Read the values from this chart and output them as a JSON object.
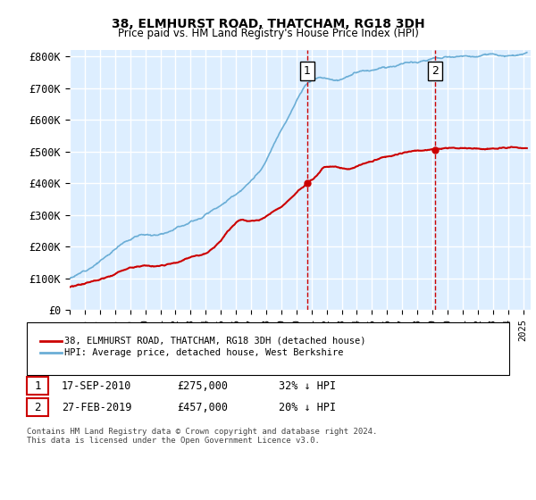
{
  "title1": "38, ELMHURST ROAD, THATCHAM, RG18 3DH",
  "title2": "Price paid vs. HM Land Registry's House Price Index (HPI)",
  "ylabel_ticks": [
    "£0",
    "£100K",
    "£200K",
    "£300K",
    "£400K",
    "£500K",
    "£600K",
    "£700K",
    "£800K"
  ],
  "ylabel_values": [
    0,
    100000,
    200000,
    300000,
    400000,
    500000,
    600000,
    700000,
    800000
  ],
  "ylim": [
    0,
    820000
  ],
  "xlim_start": 1995.0,
  "xlim_end": 2025.5,
  "hpi_color": "#6baed6",
  "price_color": "#cc0000",
  "sale1_x": 2010.72,
  "sale1_y": 275000,
  "sale2_x": 2019.17,
  "sale2_y": 457000,
  "marker1_label": "1",
  "marker2_label": "2",
  "legend_entry1": "38, ELMHURST ROAD, THATCHAM, RG18 3DH (detached house)",
  "legend_entry2": "HPI: Average price, detached house, West Berkshire",
  "table_row1_num": "1",
  "table_row1_date": "17-SEP-2010",
  "table_row1_price": "£275,000",
  "table_row1_hpi": "32% ↓ HPI",
  "table_row2_num": "2",
  "table_row2_date": "27-FEB-2019",
  "table_row2_price": "£457,000",
  "table_row2_hpi": "20% ↓ HPI",
  "footer": "Contains HM Land Registry data © Crown copyright and database right 2024.\nThis data is licensed under the Open Government Licence v3.0.",
  "background_color": "#ffffff",
  "plot_bg_color": "#ddeeff",
  "grid_color": "#ffffff",
  "dashed_line_color": "#cc0000"
}
